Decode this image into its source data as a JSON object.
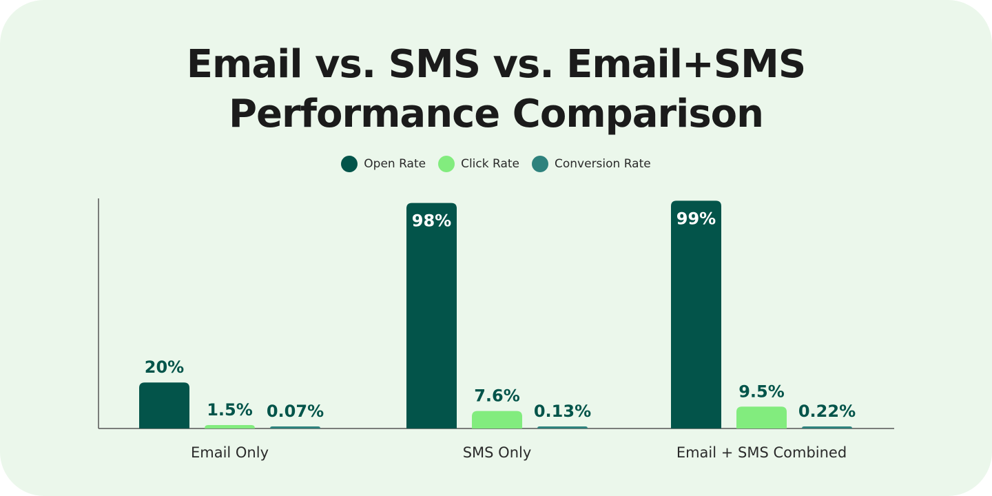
{
  "chart_data": {
    "type": "bar",
    "title_lines": [
      "Email vs. SMS vs. Email+SMS",
      "Performance Comparison"
    ],
    "categories": [
      "Email Only",
      "SMS Only",
      "Email + SMS Combined"
    ],
    "series": [
      {
        "name": "Open Rate",
        "color": "#03544a",
        "values": [
          20,
          98,
          99
        ],
        "labels": [
          "20%",
          "98%",
          "99%"
        ]
      },
      {
        "name": "Click Rate",
        "color": "#82ec7e",
        "values": [
          1.5,
          7.6,
          9.5
        ],
        "labels": [
          "1.5%",
          "7.6%",
          "9.5%"
        ]
      },
      {
        "name": "Conversion Rate",
        "color": "#2e827d",
        "values": [
          0.07,
          0.13,
          0.22
        ],
        "labels": [
          "0.07%",
          "0.13%",
          "0.22%"
        ]
      }
    ],
    "unit": "%",
    "legend_position": "top-center",
    "grid": false,
    "xlabel": "",
    "ylabel": ""
  }
}
